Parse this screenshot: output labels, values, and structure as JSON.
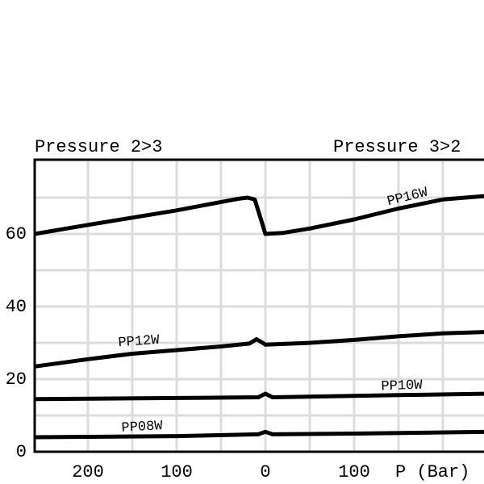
{
  "chart_data": {
    "type": "line",
    "left_title": "Pressure 2>3",
    "right_title": "Pressure 3>2",
    "x_label": "P (Bar)",
    "xlim": [
      -260,
      250
    ],
    "ylim": [
      0,
      80
    ],
    "xticks": [
      {
        "value": -200,
        "label": "200"
      },
      {
        "value": -100,
        "label": "100"
      },
      0,
      100
    ],
    "yticks": [
      0,
      20,
      40,
      60
    ],
    "xgrid": [
      -200,
      -150,
      -100,
      -50,
      0,
      50,
      100,
      150,
      200
    ],
    "ygrid": [
      10,
      20,
      30,
      40,
      50,
      60,
      70
    ],
    "grid": true,
    "series": [
      {
        "name": "PP16W",
        "color": "#000000",
        "x": [
          -260,
          -200,
          -150,
          -100,
          -50,
          -30,
          -20,
          -12,
          -5,
          0,
          20,
          50,
          100,
          150,
          200,
          250
        ],
        "values": [
          60,
          62.5,
          64.5,
          66.5,
          68.8,
          69.7,
          70,
          69.5,
          64,
          60,
          60.3,
          61.5,
          64,
          67,
          69.5,
          70.5
        ]
      },
      {
        "name": "PP12W",
        "color": "#000000",
        "x": [
          -260,
          -200,
          -150,
          -100,
          -50,
          -18,
          -10,
          -3,
          0,
          50,
          100,
          150,
          200,
          250
        ],
        "values": [
          23.5,
          25.5,
          27,
          28,
          29,
          29.8,
          31,
          30,
          29.5,
          30,
          30.8,
          31.8,
          32.6,
          33
        ]
      },
      {
        "name": "PP10W",
        "color": "#000000",
        "x": [
          -260,
          -100,
          -8,
          0,
          8,
          100,
          250
        ],
        "values": [
          14.5,
          14.8,
          15,
          16,
          15,
          15.4,
          16
        ]
      },
      {
        "name": "PP08W",
        "color": "#000000",
        "x": [
          -260,
          -100,
          -8,
          0,
          8,
          100,
          250
        ],
        "values": [
          4,
          4.3,
          4.8,
          5.5,
          4.8,
          5,
          5.5
        ]
      }
    ]
  }
}
